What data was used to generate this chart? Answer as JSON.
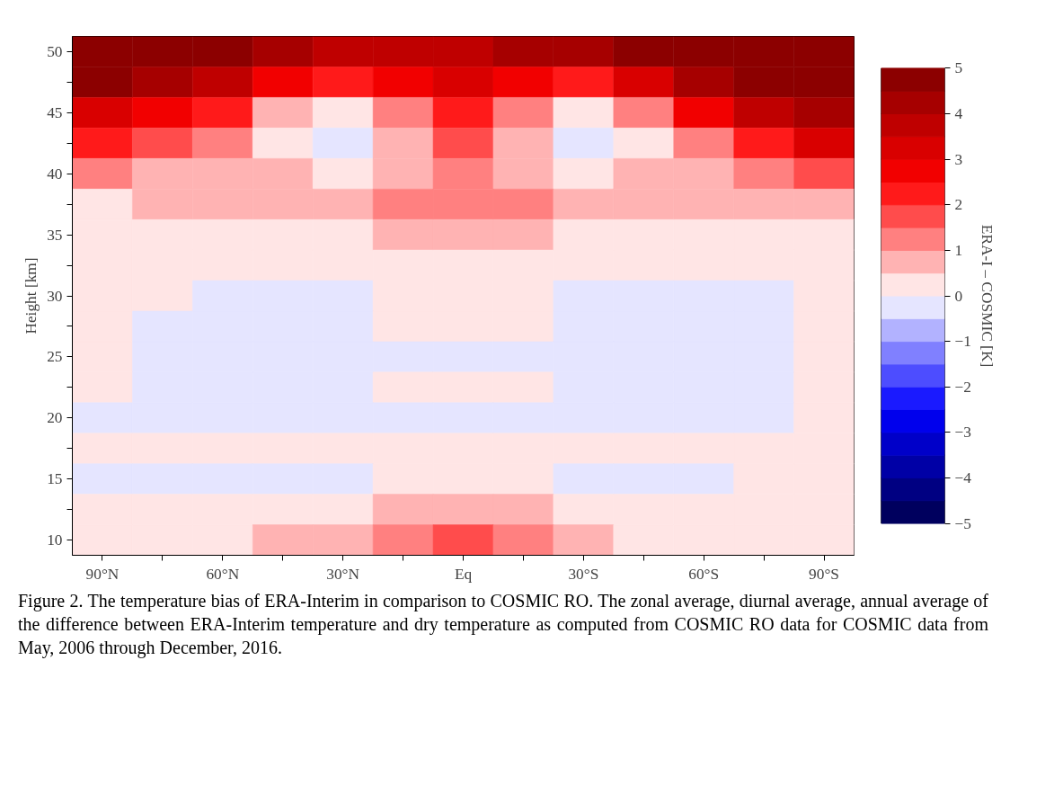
{
  "chart_data": {
    "type": "heatmap",
    "ylabel": "Height [km]",
    "clabel": "ERA-I – COSMIC [K]",
    "categories": [
      "90°N",
      null,
      "60°N",
      null,
      "30°N",
      null,
      "Eq",
      null,
      "30°S",
      null,
      "60°S",
      null,
      "90°S"
    ],
    "y_categories": [
      "50",
      null,
      "45",
      null,
      "40",
      null,
      "35",
      null,
      "30",
      null,
      "25",
      null,
      "20",
      null,
      "15",
      null,
      "10"
    ],
    "cells": [
      [
        4.75,
        4.75,
        4.75,
        4.25,
        3.75,
        3.75,
        3.75,
        4.25,
        4.25,
        4.75,
        4.75,
        4.75,
        4.75
      ],
      [
        4.75,
        4.25,
        3.75,
        2.75,
        2.25,
        2.75,
        3.25,
        2.75,
        2.25,
        3.25,
        4.25,
        4.75,
        4.75
      ],
      [
        3.25,
        2.75,
        2.25,
        0.75,
        0.25,
        1.25,
        2.25,
        1.25,
        0.25,
        1.25,
        2.75,
        3.75,
        4.25
      ],
      [
        2.25,
        1.75,
        1.25,
        0.25,
        -0.25,
        0.75,
        1.75,
        0.75,
        -0.25,
        0.25,
        1.25,
        2.25,
        3.25
      ],
      [
        1.25,
        0.75,
        0.75,
        0.75,
        0.25,
        0.75,
        1.25,
        0.75,
        0.25,
        0.75,
        0.75,
        1.25,
        1.75
      ],
      [
        0.25,
        0.75,
        0.75,
        0.75,
        0.75,
        1.25,
        1.25,
        1.25,
        0.75,
        0.75,
        0.75,
        0.75,
        0.75
      ],
      [
        0.25,
        0.25,
        0.25,
        0.25,
        0.25,
        0.75,
        0.75,
        0.75,
        0.25,
        0.25,
        0.25,
        0.25,
        0.25
      ],
      [
        0.25,
        0.25,
        0.25,
        0.25,
        0.25,
        0.25,
        0.25,
        0.25,
        0.25,
        0.25,
        0.25,
        0.25,
        0.25
      ],
      [
        0.25,
        0.25,
        -0.25,
        -0.25,
        -0.25,
        0.25,
        0.25,
        0.25,
        -0.25,
        -0.25,
        -0.25,
        -0.25,
        0.25
      ],
      [
        0.25,
        -0.25,
        -0.25,
        -0.25,
        -0.25,
        0.25,
        0.25,
        0.25,
        -0.25,
        -0.25,
        -0.25,
        -0.25,
        0.25
      ],
      [
        0.25,
        -0.25,
        -0.25,
        -0.25,
        -0.25,
        -0.25,
        -0.25,
        -0.25,
        -0.25,
        -0.25,
        -0.25,
        -0.25,
        0.25
      ],
      [
        0.25,
        -0.25,
        -0.25,
        -0.25,
        -0.25,
        0.25,
        0.25,
        0.25,
        -0.25,
        -0.25,
        -0.25,
        -0.25,
        0.25
      ],
      [
        -0.25,
        -0.25,
        -0.25,
        -0.25,
        -0.25,
        -0.25,
        -0.25,
        -0.25,
        -0.25,
        -0.25,
        -0.25,
        -0.25,
        0.25
      ],
      [
        0.25,
        0.25,
        0.25,
        0.25,
        0.25,
        0.25,
        0.25,
        0.25,
        0.25,
        0.25,
        0.25,
        0.25,
        0.25
      ],
      [
        -0.25,
        -0.25,
        -0.25,
        -0.25,
        -0.25,
        0.25,
        0.25,
        0.25,
        -0.25,
        -0.25,
        -0.25,
        0.25,
        0.25
      ],
      [
        0.25,
        0.25,
        0.25,
        0.25,
        0.25,
        0.75,
        0.75,
        0.75,
        0.25,
        0.25,
        0.25,
        0.25,
        0.25
      ],
      [
        0.25,
        0.25,
        0.25,
        0.75,
        0.75,
        1.25,
        1.75,
        1.25,
        0.75,
        0.25,
        0.25,
        0.25,
        0.25
      ]
    ],
    "clim": [
      -5,
      5
    ],
    "cticks": [
      5,
      4,
      3,
      2,
      1,
      0,
      {
        "value": -1,
        "label": "−1"
      },
      {
        "value": -2,
        "label": "−2"
      },
      {
        "value": -3,
        "label": "−3"
      },
      {
        "value": -4,
        "label": "−4"
      },
      {
        "value": -5,
        "label": "−5"
      }
    ],
    "annotations": [
      "Figure 2. The temperature bias of ERA-Interim in comparison to COSMIC RO. The zonal average, diurnal average, annual average of the difference between ERA-Interim temperature and dry temperature as computed from COSMIC RO data for COSMIC data from May, 2006 through December, 2016."
    ]
  }
}
